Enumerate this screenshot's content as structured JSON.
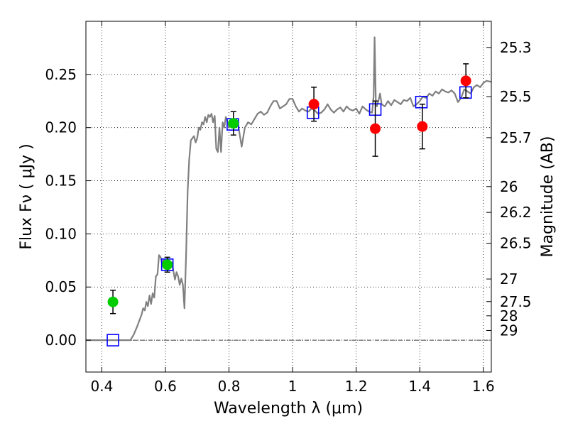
{
  "chart_data": {
    "type": "scatter",
    "xlabel": "Wavelength  λ (μm)",
    "ylabel": "Flux  Fν  ( μJy )",
    "ylabel_right": "Magnitude (AB)",
    "xlim": [
      0.35,
      1.625
    ],
    "ylim": [
      -0.03,
      0.3
    ],
    "grid": true,
    "x_ticks": [
      0.4,
      0.6,
      0.8,
      1.0,
      1.2,
      1.4,
      1.6
    ],
    "x_tick_labels": [
      "0.4",
      "0.6",
      "0.8",
      "1",
      "1.2",
      "1.4",
      "1.6"
    ],
    "y_ticks": [
      0.0,
      0.05,
      0.1,
      0.15,
      0.2,
      0.25
    ],
    "y_tick_labels": [
      "0.00",
      "0.05",
      "0.10",
      "0.15",
      "0.20",
      "0.25"
    ],
    "right_ticks": [
      {
        "flux": 0.2754,
        "label": "25.3"
      },
      {
        "flux": 0.2291,
        "label": "25.5"
      },
      {
        "flux": 0.1905,
        "label": "25.7"
      },
      {
        "flux": 0.1445,
        "label": "26"
      },
      {
        "flux": 0.1202,
        "label": "26.2"
      },
      {
        "flux": 0.0912,
        "label": "26.5"
      },
      {
        "flux": 0.0575,
        "label": "27"
      },
      {
        "flux": 0.0363,
        "label": "27.5"
      },
      {
        "flux": 0.0229,
        "label": "28"
      },
      {
        "flux": 0.0091,
        "label": "29"
      }
    ],
    "series": [
      {
        "kind": "line",
        "color": "#808080",
        "x": [
          0.35,
          0.49,
          0.5,
          0.51,
          0.52,
          0.525,
          0.53,
          0.535,
          0.54,
          0.545,
          0.55,
          0.555,
          0.56,
          0.565,
          0.57,
          0.575,
          0.58,
          0.585,
          0.59,
          0.595,
          0.6,
          0.605,
          0.61,
          0.615,
          0.62,
          0.625,
          0.63,
          0.635,
          0.64,
          0.645,
          0.65,
          0.655,
          0.66,
          0.665,
          0.67,
          0.675,
          0.68,
          0.685,
          0.69,
          0.695,
          0.7,
          0.705,
          0.71,
          0.715,
          0.72,
          0.725,
          0.73,
          0.735,
          0.74,
          0.745,
          0.75,
          0.755,
          0.76,
          0.765,
          0.77,
          0.775,
          0.78,
          0.785,
          0.79,
          0.795,
          0.8,
          0.81,
          0.82,
          0.83,
          0.84,
          0.85,
          0.86,
          0.87,
          0.88,
          0.89,
          0.9,
          0.91,
          0.92,
          0.93,
          0.94,
          0.95,
          0.96,
          0.97,
          0.98,
          0.99,
          1.0,
          1.01,
          1.02,
          1.03,
          1.04,
          1.05,
          1.06,
          1.07,
          1.08,
          1.09,
          1.1,
          1.11,
          1.12,
          1.13,
          1.14,
          1.15,
          1.16,
          1.17,
          1.18,
          1.19,
          1.2,
          1.21,
          1.22,
          1.23,
          1.24,
          1.25,
          1.255,
          1.258,
          1.262,
          1.265,
          1.27,
          1.275,
          1.28,
          1.29,
          1.3,
          1.31,
          1.32,
          1.33,
          1.34,
          1.35,
          1.36,
          1.37,
          1.38,
          1.39,
          1.4,
          1.41,
          1.42,
          1.43,
          1.44,
          1.45,
          1.46,
          1.47,
          1.48,
          1.49,
          1.5,
          1.51,
          1.52,
          1.53,
          1.54,
          1.55,
          1.56,
          1.57,
          1.58,
          1.59,
          1.6,
          1.61,
          1.625
        ],
        "y": [
          0.0,
          0.0,
          0.005,
          0.012,
          0.02,
          0.024,
          0.03,
          0.028,
          0.036,
          0.032,
          0.042,
          0.034,
          0.044,
          0.04,
          0.06,
          0.062,
          0.08,
          0.078,
          0.072,
          0.076,
          0.071,
          0.069,
          0.068,
          0.07,
          0.073,
          0.065,
          0.057,
          0.064,
          0.06,
          0.052,
          0.058,
          0.052,
          0.03,
          0.08,
          0.14,
          0.17,
          0.188,
          0.19,
          0.192,
          0.186,
          0.19,
          0.2,
          0.198,
          0.205,
          0.203,
          0.21,
          0.205,
          0.212,
          0.21,
          0.213,
          0.205,
          0.211,
          0.18,
          0.177,
          0.2,
          0.177,
          0.205,
          0.2,
          0.21,
          0.206,
          0.2,
          0.205,
          0.208,
          0.2,
          0.182,
          0.2,
          0.205,
          0.203,
          0.208,
          0.213,
          0.215,
          0.212,
          0.214,
          0.22,
          0.225,
          0.225,
          0.218,
          0.22,
          0.222,
          0.227,
          0.227,
          0.22,
          0.215,
          0.218,
          0.216,
          0.215,
          0.218,
          0.216,
          0.213,
          0.214,
          0.217,
          0.222,
          0.217,
          0.214,
          0.217,
          0.219,
          0.215,
          0.22,
          0.217,
          0.216,
          0.218,
          0.213,
          0.22,
          0.217,
          0.215,
          0.214,
          0.23,
          0.285,
          0.222,
          0.22,
          0.225,
          0.232,
          0.222,
          0.22,
          0.225,
          0.221,
          0.226,
          0.224,
          0.222,
          0.226,
          0.225,
          0.228,
          0.22,
          0.222,
          0.225,
          0.229,
          0.228,
          0.232,
          0.23,
          0.234,
          0.232,
          0.236,
          0.234,
          0.233,
          0.235,
          0.232,
          0.224,
          0.228,
          0.236,
          0.234,
          0.232,
          0.238,
          0.24,
          0.238,
          0.242,
          0.244,
          0.243
        ]
      },
      {
        "kind": "points",
        "marker": "square",
        "color": "#0000ff",
        "x": [
          0.435,
          0.606,
          0.812,
          1.064,
          1.26,
          1.405,
          1.544
        ],
        "y": [
          0.0,
          0.071,
          0.203,
          0.214,
          0.217,
          0.224,
          0.233
        ]
      },
      {
        "kind": "points",
        "marker": "circle",
        "color": "#00cc00",
        "x": [
          0.435,
          0.606,
          0.814
        ],
        "y": [
          0.036,
          0.071,
          0.204
        ],
        "yerr": [
          0.011,
          0.007,
          0.011
        ]
      },
      {
        "kind": "points",
        "marker": "circle",
        "color": "#ff0000",
        "x": [
          1.067,
          1.26,
          1.408,
          1.545
        ],
        "y": [
          0.222,
          0.199,
          0.201,
          0.244
        ],
        "yerr": [
          0.016,
          0.026,
          0.021,
          0.016
        ]
      }
    ]
  }
}
